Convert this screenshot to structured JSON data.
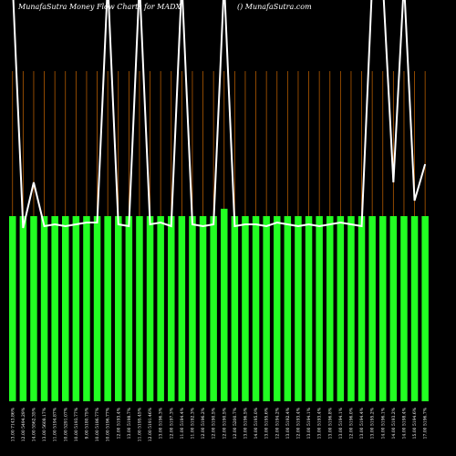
{
  "chart_data": {
    "type": "bar",
    "title": "MunafaSutra  Money Flow  Charts for MADX",
    "subtitle": "() MunafaSutra.com",
    "categories": [
      "13.00 7143.86%",
      "12.00 5494.29%",
      "14.00 5562.35%",
      "13.00 5608.17%",
      "11.00 5194.87%",
      "10.00 5291.07%",
      "10.00 5193.77%",
      "9.00 5180.75%",
      "10.00 5186.77%",
      "10.00 5196.77%",
      "12.00 5193.4%",
      "13.00 5198.7%",
      "11.00 5195.45%",
      "12.00 5191.46%",
      "13.00 5196.3%",
      "12.00 5197.3%",
      "11.00 5184.4%",
      "11.00 5192.3%",
      "12.00 5196.2%",
      "12.00 5190.5%",
      "12.00 5190.5%",
      "12.00 5200.7%",
      "13.00 5196.5%",
      "14.00 5195.0%",
      "13.00 5195.6%",
      "12.00 5194.2%",
      "13.00 5192.4%",
      "12.00 5193.4%",
      "13.00 5194.1%",
      "13.00 5193.4%",
      "13.00 5196.8%",
      "13.00 5194.1%",
      "12.00 5196.0%",
      "13.00 5194.4%",
      "13.00 5195.2%",
      "14.00 5196.1%",
      "14.00 5193.2%",
      "14.00 5198.4%",
      "15.00 5194.6%",
      "17.00 5196.7%"
    ],
    "values": [
      100,
      100,
      100,
      100,
      100,
      100,
      100,
      100,
      100,
      100,
      100,
      100,
      100,
      100,
      100,
      100,
      100,
      100,
      100,
      100,
      104,
      100,
      100,
      100,
      100,
      100,
      100,
      100,
      100,
      100,
      100,
      100,
      100,
      100,
      100,
      100,
      100,
      100,
      100,
      100
    ],
    "color": "#22ff22",
    "ylim": [
      0,
      100
    ],
    "line": {
      "color": "#ffffff",
      "ylim": [
        0,
        220
      ],
      "values": [
        230,
        95,
        120,
        96,
        97,
        96,
        97,
        98,
        98,
        230,
        97,
        96,
        230,
        97,
        98,
        96,
        230,
        97,
        96,
        97,
        230,
        96,
        97,
        97,
        96,
        98,
        97,
        96,
        97,
        96,
        97,
        98,
        97,
        96,
        230,
        230,
        120,
        230,
        110,
        130
      ]
    },
    "guide_color": "#b35a00"
  }
}
